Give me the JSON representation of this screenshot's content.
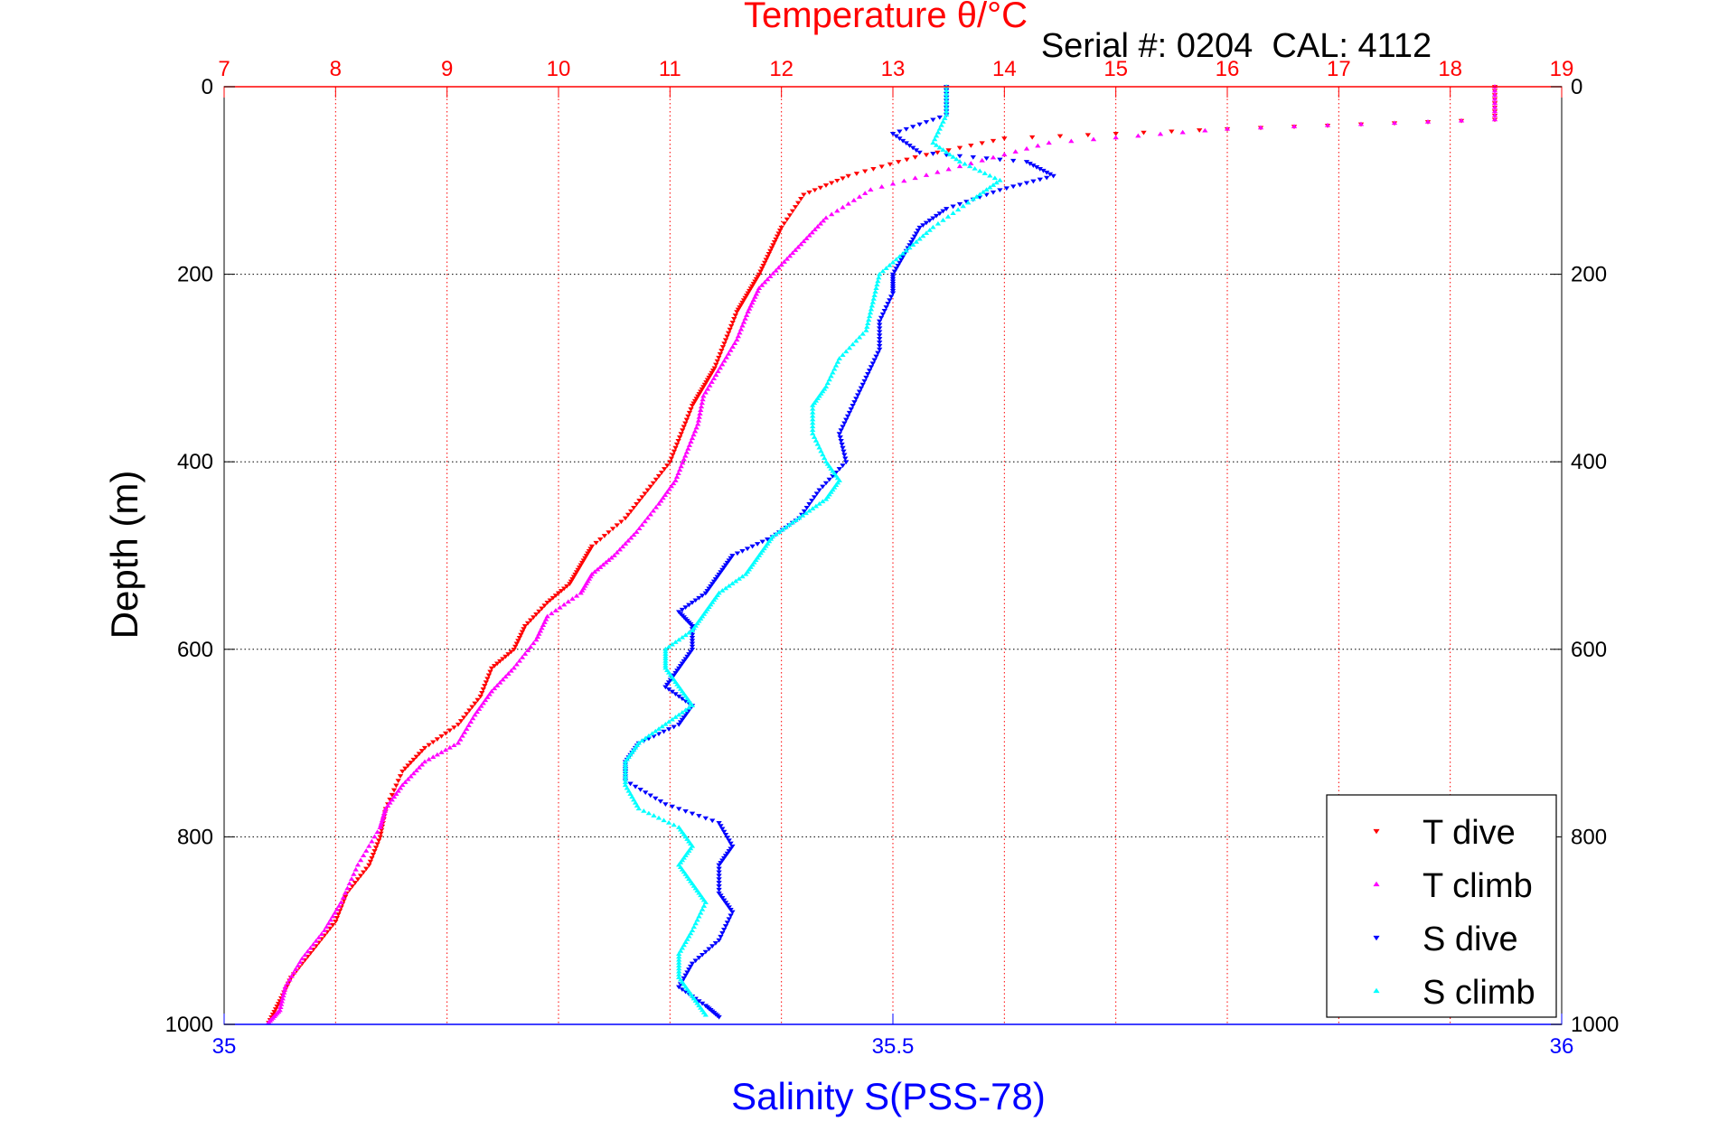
{
  "chart_data": {
    "type": "scatter",
    "title": "Temperature θ/°C",
    "annotation": "Serial #: 0204  CAL: 4112",
    "xlabel": "Salinity S(PSS-78)",
    "ylabel": "Depth (m)",
    "top_axis": {
      "range": [
        7,
        19
      ],
      "ticks": [
        "7",
        "8",
        "9",
        "10",
        "11",
        "12",
        "13",
        "14",
        "15",
        "16",
        "17",
        "18",
        "19"
      ],
      "color": "#ff0000",
      "grid": true
    },
    "bottom_axis": {
      "range": [
        35,
        36
      ],
      "ticks": [
        "35",
        "35.5",
        "36"
      ],
      "color": "#0000ff"
    },
    "y_axis": {
      "range": [
        0,
        1000
      ],
      "reversed": true,
      "ticks": [
        "0",
        "200",
        "400",
        "600",
        "800",
        "1000"
      ],
      "grid": true
    },
    "legend": {
      "placement": "bottom-right"
    },
    "series": [
      {
        "name": "T dive",
        "axis": "top",
        "color": "#ff0000",
        "marker": "triangle-down",
        "points": [
          [
            18.4,
            0
          ],
          [
            18.4,
            35
          ],
          [
            16,
            45
          ],
          [
            14,
            55
          ],
          [
            13.2,
            75
          ],
          [
            12.6,
            95
          ],
          [
            12.2,
            115
          ],
          [
            12.0,
            150
          ],
          [
            11.9,
            175
          ],
          [
            11.8,
            200
          ],
          [
            11.7,
            220
          ],
          [
            11.6,
            240
          ],
          [
            11.5,
            270
          ],
          [
            11.4,
            300
          ],
          [
            11.3,
            320
          ],
          [
            11.2,
            340
          ],
          [
            11.1,
            370
          ],
          [
            11.0,
            400
          ],
          [
            10.8,
            430
          ],
          [
            10.6,
            460
          ],
          [
            10.3,
            490
          ],
          [
            10.2,
            510
          ],
          [
            10.1,
            530
          ],
          [
            9.9,
            550
          ],
          [
            9.7,
            575
          ],
          [
            9.6,
            600
          ],
          [
            9.4,
            620
          ],
          [
            9.3,
            650
          ],
          [
            9.1,
            680
          ],
          [
            8.8,
            705
          ],
          [
            8.6,
            730
          ],
          [
            8.45,
            770
          ],
          [
            8.4,
            800
          ],
          [
            8.3,
            830
          ],
          [
            8.1,
            860
          ],
          [
            8.0,
            890
          ],
          [
            7.8,
            920
          ],
          [
            7.6,
            950
          ],
          [
            7.5,
            975
          ],
          [
            7.4,
            998
          ]
        ]
      },
      {
        "name": "T climb",
        "axis": "top",
        "color": "#ff00ff",
        "marker": "triangle-up",
        "points": [
          [
            18.4,
            0
          ],
          [
            18.4,
            35
          ],
          [
            16,
            45
          ],
          [
            14.4,
            60
          ],
          [
            13.6,
            85
          ],
          [
            12.8,
            110
          ],
          [
            12.4,
            140
          ],
          [
            12.2,
            165
          ],
          [
            12.0,
            190
          ],
          [
            11.8,
            215
          ],
          [
            11.7,
            240
          ],
          [
            11.6,
            270
          ],
          [
            11.45,
            300
          ],
          [
            11.3,
            330
          ],
          [
            11.25,
            360
          ],
          [
            11.15,
            390
          ],
          [
            11.05,
            420
          ],
          [
            10.9,
            445
          ],
          [
            10.7,
            475
          ],
          [
            10.5,
            500
          ],
          [
            10.3,
            520
          ],
          [
            10.2,
            540
          ],
          [
            9.9,
            565
          ],
          [
            9.8,
            590
          ],
          [
            9.6,
            620
          ],
          [
            9.4,
            645
          ],
          [
            9.25,
            670
          ],
          [
            9.1,
            700
          ],
          [
            8.8,
            720
          ],
          [
            8.6,
            745
          ],
          [
            8.45,
            770
          ],
          [
            8.4,
            790
          ],
          [
            8.2,
            830
          ],
          [
            8.05,
            870
          ],
          [
            7.9,
            900
          ],
          [
            7.7,
            930
          ],
          [
            7.55,
            960
          ],
          [
            7.5,
            985
          ],
          [
            7.4,
            998
          ]
        ]
      },
      {
        "name": "S dive",
        "axis": "bottom",
        "color": "#0000ff",
        "marker": "triangle-down",
        "points": [
          [
            35.54,
            0
          ],
          [
            35.54,
            30
          ],
          [
            35.5,
            50
          ],
          [
            35.52,
            70
          ],
          [
            35.6,
            80
          ],
          [
            35.62,
            95
          ],
          [
            35.58,
            110
          ],
          [
            35.54,
            130
          ],
          [
            35.52,
            150
          ],
          [
            35.51,
            175
          ],
          [
            35.5,
            200
          ],
          [
            35.5,
            220
          ],
          [
            35.49,
            250
          ],
          [
            35.49,
            280
          ],
          [
            35.48,
            310
          ],
          [
            35.47,
            340
          ],
          [
            35.46,
            370
          ],
          [
            35.465,
            400
          ],
          [
            35.445,
            430
          ],
          [
            35.43,
            460
          ],
          [
            35.41,
            480
          ],
          [
            35.38,
            500
          ],
          [
            35.37,
            520
          ],
          [
            35.36,
            540
          ],
          [
            35.34,
            560
          ],
          [
            35.35,
            575
          ],
          [
            35.35,
            600
          ],
          [
            35.34,
            620
          ],
          [
            35.33,
            640
          ],
          [
            35.35,
            660
          ],
          [
            35.34,
            680
          ],
          [
            35.31,
            700
          ],
          [
            35.3,
            720
          ],
          [
            35.3,
            740
          ],
          [
            35.33,
            765
          ],
          [
            35.37,
            785
          ],
          [
            35.38,
            810
          ],
          [
            35.37,
            830
          ],
          [
            35.37,
            860
          ],
          [
            35.38,
            880
          ],
          [
            35.37,
            910
          ],
          [
            35.35,
            935
          ],
          [
            35.34,
            960
          ],
          [
            35.36,
            980
          ],
          [
            35.37,
            992
          ]
        ]
      },
      {
        "name": "S climb",
        "axis": "bottom",
        "color": "#00ffff",
        "marker": "triangle-up",
        "points": [
          [
            35.54,
            0
          ],
          [
            35.54,
            30
          ],
          [
            35.53,
            60
          ],
          [
            35.55,
            80
          ],
          [
            35.58,
            100
          ],
          [
            35.56,
            120
          ],
          [
            35.53,
            150
          ],
          [
            35.51,
            175
          ],
          [
            35.49,
            200
          ],
          [
            35.485,
            230
          ],
          [
            35.48,
            260
          ],
          [
            35.46,
            290
          ],
          [
            35.45,
            320
          ],
          [
            35.44,
            340
          ],
          [
            35.44,
            370
          ],
          [
            35.45,
            400
          ],
          [
            35.46,
            420
          ],
          [
            35.45,
            440
          ],
          [
            35.43,
            460
          ],
          [
            35.41,
            480
          ],
          [
            35.4,
            500
          ],
          [
            35.39,
            520
          ],
          [
            35.37,
            540
          ],
          [
            35.36,
            560
          ],
          [
            35.35,
            580
          ],
          [
            35.33,
            600
          ],
          [
            35.33,
            620
          ],
          [
            35.34,
            640
          ],
          [
            35.35,
            660
          ],
          [
            35.33,
            680
          ],
          [
            35.31,
            700
          ],
          [
            35.3,
            720
          ],
          [
            35.3,
            745
          ],
          [
            35.31,
            770
          ],
          [
            35.34,
            790
          ],
          [
            35.35,
            810
          ],
          [
            35.34,
            830
          ],
          [
            35.35,
            850
          ],
          [
            35.36,
            870
          ],
          [
            35.35,
            900
          ],
          [
            35.34,
            925
          ],
          [
            35.34,
            950
          ],
          [
            35.35,
            970
          ],
          [
            35.36,
            990
          ]
        ]
      }
    ]
  }
}
